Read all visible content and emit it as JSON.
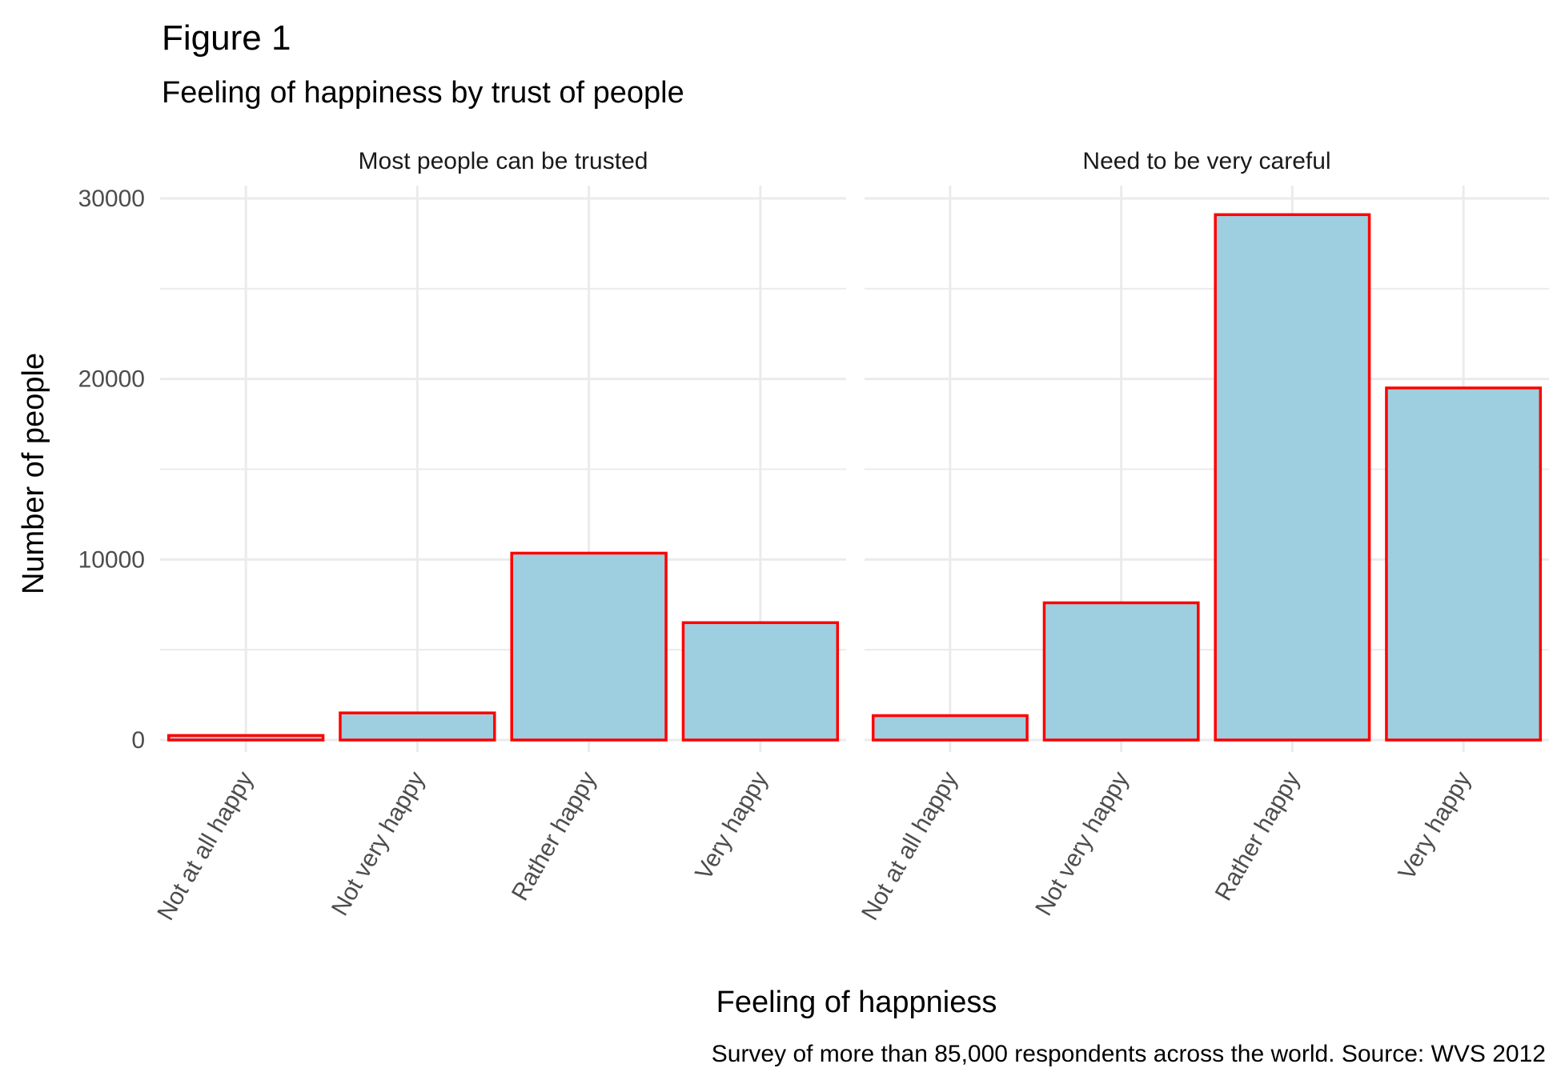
{
  "chart_data": {
    "type": "bar",
    "title": "Figure 1",
    "subtitle": "Feeling of happiness by trust of people",
    "xlabel": "Feeling of happniess",
    "ylabel": "Number of people",
    "caption": "Survey of more than 85,000 respondents across the world. Source: WVS 2012",
    "categories": [
      "Not at all happy",
      "Not very happy",
      "Rather happy",
      "Very happy"
    ],
    "ylim": [
      0,
      30000
    ],
    "yticks": [
      0,
      10000,
      20000,
      30000
    ],
    "ytick_labels": [
      "0",
      "10000",
      "20000",
      "30000"
    ],
    "grid": true,
    "bar_fill": "#9ecfe0",
    "bar_outline": "#ff0000",
    "facets": [
      {
        "name": "Most people can be trusted",
        "values": [
          250,
          1500,
          10350,
          6500
        ]
      },
      {
        "name": "Need to be very careful",
        "values": [
          1350,
          7600,
          29100,
          19500
        ]
      }
    ]
  }
}
